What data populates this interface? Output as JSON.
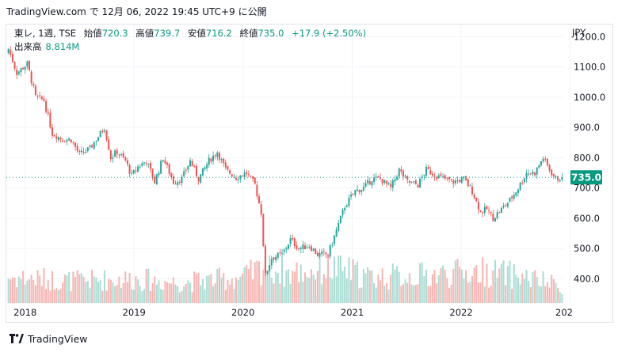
{
  "header": {
    "site": "TradingView.com",
    "particle": "で",
    "datetime": "12月 06, 2022 19:45 UTC+9",
    "suffix": "に公開"
  },
  "legend": {
    "symbol": "東レ, 1週, TSE",
    "open_label": "始値",
    "open_value": "720.3",
    "high_label": "高値",
    "high_value": "739.7",
    "low_label": "安値",
    "low_value": "716.2",
    "close_label": "終値",
    "close_value": "735.0",
    "change_value": "+17.9 (+2.50%)",
    "volume_label": "出来高",
    "volume_value": "8.814M"
  },
  "currency": "JPY",
  "footer": {
    "brand": "TradingView"
  },
  "colors": {
    "up": "#26a69a",
    "down": "#ef5350",
    "up_volume": "#a9dcd3",
    "down_volume": "#f7b4b1",
    "grid": "#f0f3fa",
    "last_price_bg": "#089981"
  },
  "chart_data": {
    "type": "candlestick",
    "title": "",
    "symbol": "東レ",
    "interval": "1週",
    "exchange": "TSE",
    "ylabel": "JPY",
    "yticks": [
      "1200.0",
      "1100.0",
      "1000.0",
      "900.0",
      "800.0",
      "700.0",
      "600.0",
      "500.0",
      "400.0"
    ],
    "ylim": [
      320,
      1240
    ],
    "xticks": [
      "2018",
      "2019",
      "2020",
      "2021",
      "2022",
      "202"
    ],
    "xlim": [
      "2017-10-30",
      "2022-12-12"
    ],
    "last_price": "735.0",
    "grid": true,
    "anchor_close": [
      [
        "2017-11-06",
        1160
      ],
      [
        "2017-12-04",
        1080
      ],
      [
        "2018-01-08",
        1110
      ],
      [
        "2018-02-05",
        1000
      ],
      [
        "2018-03-05",
        990
      ],
      [
        "2018-04-02",
        880
      ],
      [
        "2018-05-07",
        860
      ],
      [
        "2018-06-04",
        860
      ],
      [
        "2018-07-02",
        810
      ],
      [
        "2018-08-06",
        830
      ],
      [
        "2018-09-03",
        870
      ],
      [
        "2018-09-24",
        900
      ],
      [
        "2018-10-15",
        800
      ],
      [
        "2018-11-05",
        820
      ],
      [
        "2018-12-03",
        790
      ],
      [
        "2018-12-24",
        740
      ],
      [
        "2019-01-14",
        770
      ],
      [
        "2019-02-11",
        790
      ],
      [
        "2019-03-11",
        720
      ],
      [
        "2019-04-08",
        800
      ],
      [
        "2019-05-13",
        720
      ],
      [
        "2019-06-10",
        730
      ],
      [
        "2019-07-08",
        790
      ],
      [
        "2019-08-05",
        730
      ],
      [
        "2019-09-09",
        790
      ],
      [
        "2019-10-07",
        820
      ],
      [
        "2019-11-04",
        760
      ],
      [
        "2019-12-09",
        735
      ],
      [
        "2020-01-13",
        750
      ],
      [
        "2020-02-10",
        710
      ],
      [
        "2020-03-02",
        620
      ],
      [
        "2020-03-16",
        410
      ],
      [
        "2020-04-06",
        470
      ],
      [
        "2020-05-11",
        480
      ],
      [
        "2020-06-08",
        530
      ],
      [
        "2020-07-06",
        500
      ],
      [
        "2020-08-10",
        510
      ],
      [
        "2020-09-07",
        480
      ],
      [
        "2020-10-12",
        480
      ],
      [
        "2020-11-09",
        560
      ],
      [
        "2020-12-07",
        640
      ],
      [
        "2021-01-11",
        690
      ],
      [
        "2021-02-08",
        700
      ],
      [
        "2021-03-08",
        730
      ],
      [
        "2021-04-05",
        730
      ],
      [
        "2021-05-10",
        700
      ],
      [
        "2021-06-07",
        760
      ],
      [
        "2021-07-05",
        720
      ],
      [
        "2021-08-09",
        710
      ],
      [
        "2021-09-06",
        760
      ],
      [
        "2021-10-11",
        740
      ],
      [
        "2021-11-08",
        730
      ],
      [
        "2021-12-06",
        720
      ],
      [
        "2022-01-10",
        730
      ],
      [
        "2022-02-07",
        690
      ],
      [
        "2022-03-07",
        620
      ],
      [
        "2022-03-28",
        630
      ],
      [
        "2022-04-18",
        600
      ],
      [
        "2022-05-16",
        630
      ],
      [
        "2022-06-13",
        660
      ],
      [
        "2022-07-11",
        700
      ],
      [
        "2022-08-08",
        750
      ],
      [
        "2022-09-05",
        750
      ],
      [
        "2022-10-03",
        800
      ],
      [
        "2022-10-24",
        760
      ],
      [
        "2022-11-14",
        730
      ],
      [
        "2022-12-05",
        735
      ]
    ],
    "anchor_volume_millions": [
      [
        "2017-11-06",
        14
      ],
      [
        "2018-06-04",
        12
      ],
      [
        "2019-01-07",
        13
      ],
      [
        "2019-06-03",
        11
      ],
      [
        "2020-01-06",
        14
      ],
      [
        "2020-03-16",
        20
      ],
      [
        "2020-06-01",
        16
      ],
      [
        "2020-11-09",
        19
      ],
      [
        "2021-03-01",
        14
      ],
      [
        "2021-09-06",
        15
      ],
      [
        "2022-03-07",
        17
      ],
      [
        "2022-07-04",
        15
      ],
      [
        "2022-12-05",
        9
      ]
    ]
  }
}
